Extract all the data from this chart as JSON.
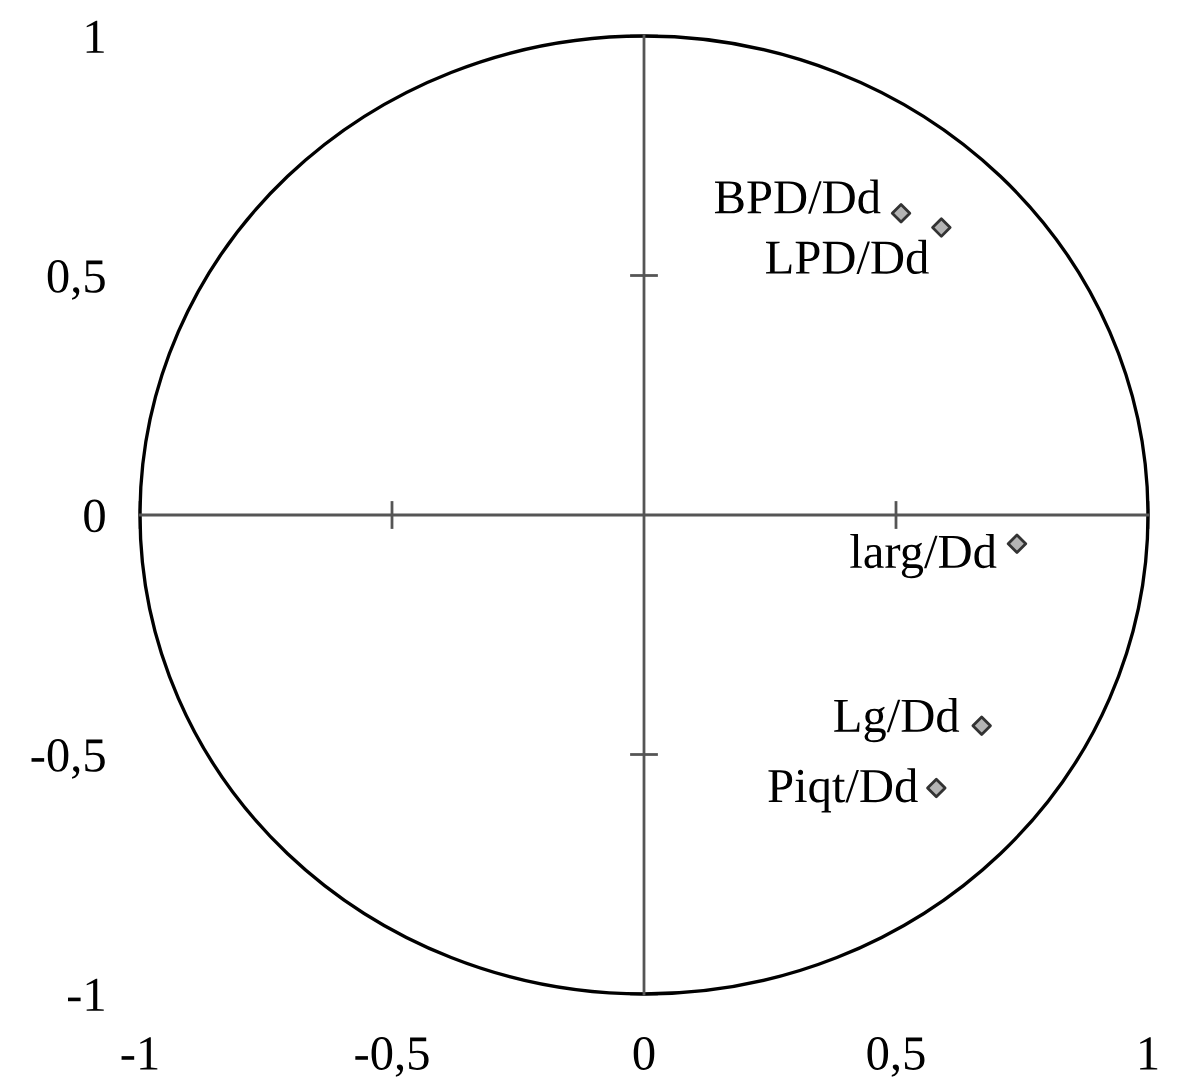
{
  "chart_data": {
    "type": "scatter",
    "x": [
      0.51,
      0.59,
      0.74,
      0.67,
      0.58
    ],
    "values": [
      0.63,
      0.6,
      -0.06,
      -0.44,
      -0.57
    ],
    "color": "#b4b4b4",
    "marker": "diamond",
    "xlim": [
      -1,
      1
    ],
    "ylim": [
      -1,
      1
    ],
    "xticks": [
      -1,
      {
        "value": -0.5,
        "label": "-0,5"
      },
      0,
      {
        "value": 0.5,
        "label": "0,5"
      },
      1
    ],
    "yticks": [
      -1,
      {
        "value": -0.5,
        "label": "-0,5"
      },
      0,
      {
        "value": 0.5,
        "label": "0,5"
      },
      1
    ],
    "annotations": [
      {
        "text": "BPD/Dd",
        "x": 0.51,
        "y": 0.63
      },
      {
        "text": "LPD/Dd",
        "x": 0.59,
        "y": 0.6
      },
      {
        "text": "larg/Dd",
        "x": 0.74,
        "y": -0.06
      },
      {
        "text": "Lg/Dd",
        "x": 0.67,
        "y": -0.44
      },
      {
        "text": "Piqt/Dd",
        "x": 0.58,
        "y": -0.57
      }
    ]
  }
}
